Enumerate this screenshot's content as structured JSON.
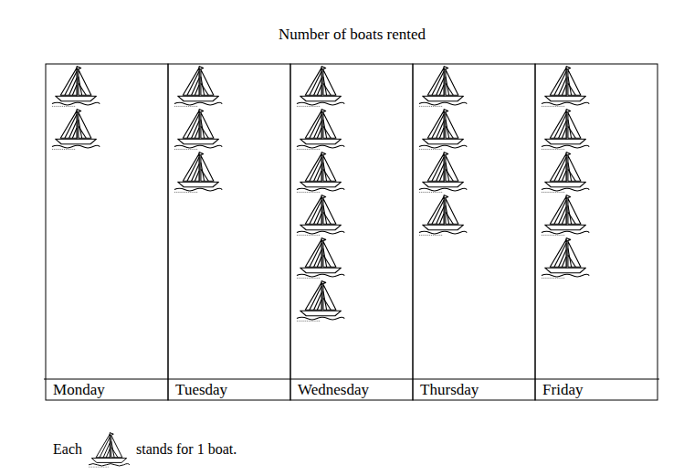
{
  "chart_data": {
    "type": "pictograph",
    "title": "Number of boats rented",
    "categories": [
      "Monday",
      "Tuesday",
      "Wednesday",
      "Thursday",
      "Friday"
    ],
    "values": [
      2,
      3,
      6,
      4,
      5
    ],
    "key": {
      "before": "Each",
      "after": "stands for 1 boat.",
      "value": 1
    },
    "tick_labels": "x"
  }
}
